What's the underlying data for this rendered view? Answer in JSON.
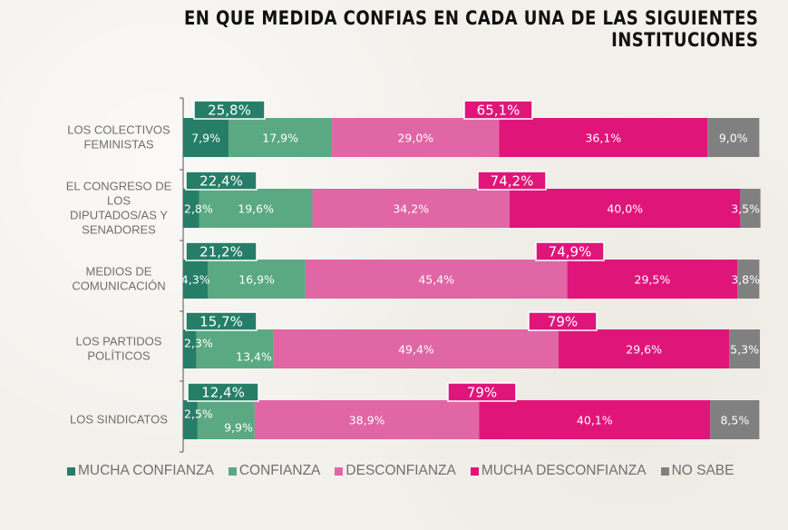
{
  "chart_data": {
    "type": "bar",
    "orientation": "horizontal",
    "stacked": true,
    "title": "EN QUE MEDIDA CONFIAS EN CADA UNA DE LAS SIGUIENTES INSTITUCIONES",
    "xlabel": "",
    "ylabel": "",
    "xlim": [
      0,
      100
    ],
    "grid": false,
    "legend_position": "bottom",
    "categories": [
      [
        "LOS COLECTIVOS",
        "FEMINISTAS"
      ],
      [
        "EL CONGRESO DE",
        "LOS",
        "DIPUTADOS/AS Y",
        "SENADORES"
      ],
      [
        "MEDIOS DE",
        "COMUNICACIÓN"
      ],
      [
        "LOS PARTIDOS",
        "POLÍTICOS"
      ],
      [
        "LOS SINDICATOS"
      ]
    ],
    "series": [
      {
        "name": "MUCHA CONFIANZA",
        "color": "#267e68",
        "values": [
          7.9,
          2.8,
          4.3,
          2.3,
          2.5
        ],
        "labels": [
          "7,9%",
          "2,8%",
          "4,3%",
          "2,3%",
          "2,5%"
        ]
      },
      {
        "name": "CONFIANZA",
        "color": "#5aa982",
        "values": [
          17.9,
          19.6,
          16.9,
          13.4,
          9.9
        ],
        "labels": [
          "17,9%",
          "19,6%",
          "16,9%",
          "13,4%",
          "9,9%"
        ]
      },
      {
        "name": "DESCONFIANZA",
        "color": "#e066a5",
        "values": [
          29.0,
          34.2,
          45.4,
          49.4,
          38.9
        ],
        "labels": [
          "29,0%",
          "34,2%",
          "45,4%",
          "49,4%",
          "38,9%"
        ]
      },
      {
        "name": "MUCHA DESCONFIANZA",
        "color": "#e0157a",
        "values": [
          36.1,
          40.0,
          29.5,
          29.6,
          40.1
        ],
        "labels": [
          "36,1%",
          "40,0%",
          "29,5%",
          "29,6%",
          "40,1%"
        ]
      },
      {
        "name": "NO SABE",
        "color": "#808080",
        "values": [
          9.0,
          3.5,
          3.8,
          5.3,
          8.5
        ],
        "labels": [
          "9,0%",
          "3,5%",
          "3,8%",
          "5,3%",
          "8,5%"
        ]
      }
    ],
    "annotations": {
      "confianza_total": {
        "color": "#267e68",
        "labels": [
          "25,8%",
          "22,4%",
          "21,2%",
          "15,7%",
          "12,4%"
        ]
      },
      "desconfianza_total": {
        "color": "#e0157a",
        "labels": [
          "65,1%",
          "74,2%",
          "74,9%",
          "79%",
          "79%"
        ]
      }
    }
  }
}
